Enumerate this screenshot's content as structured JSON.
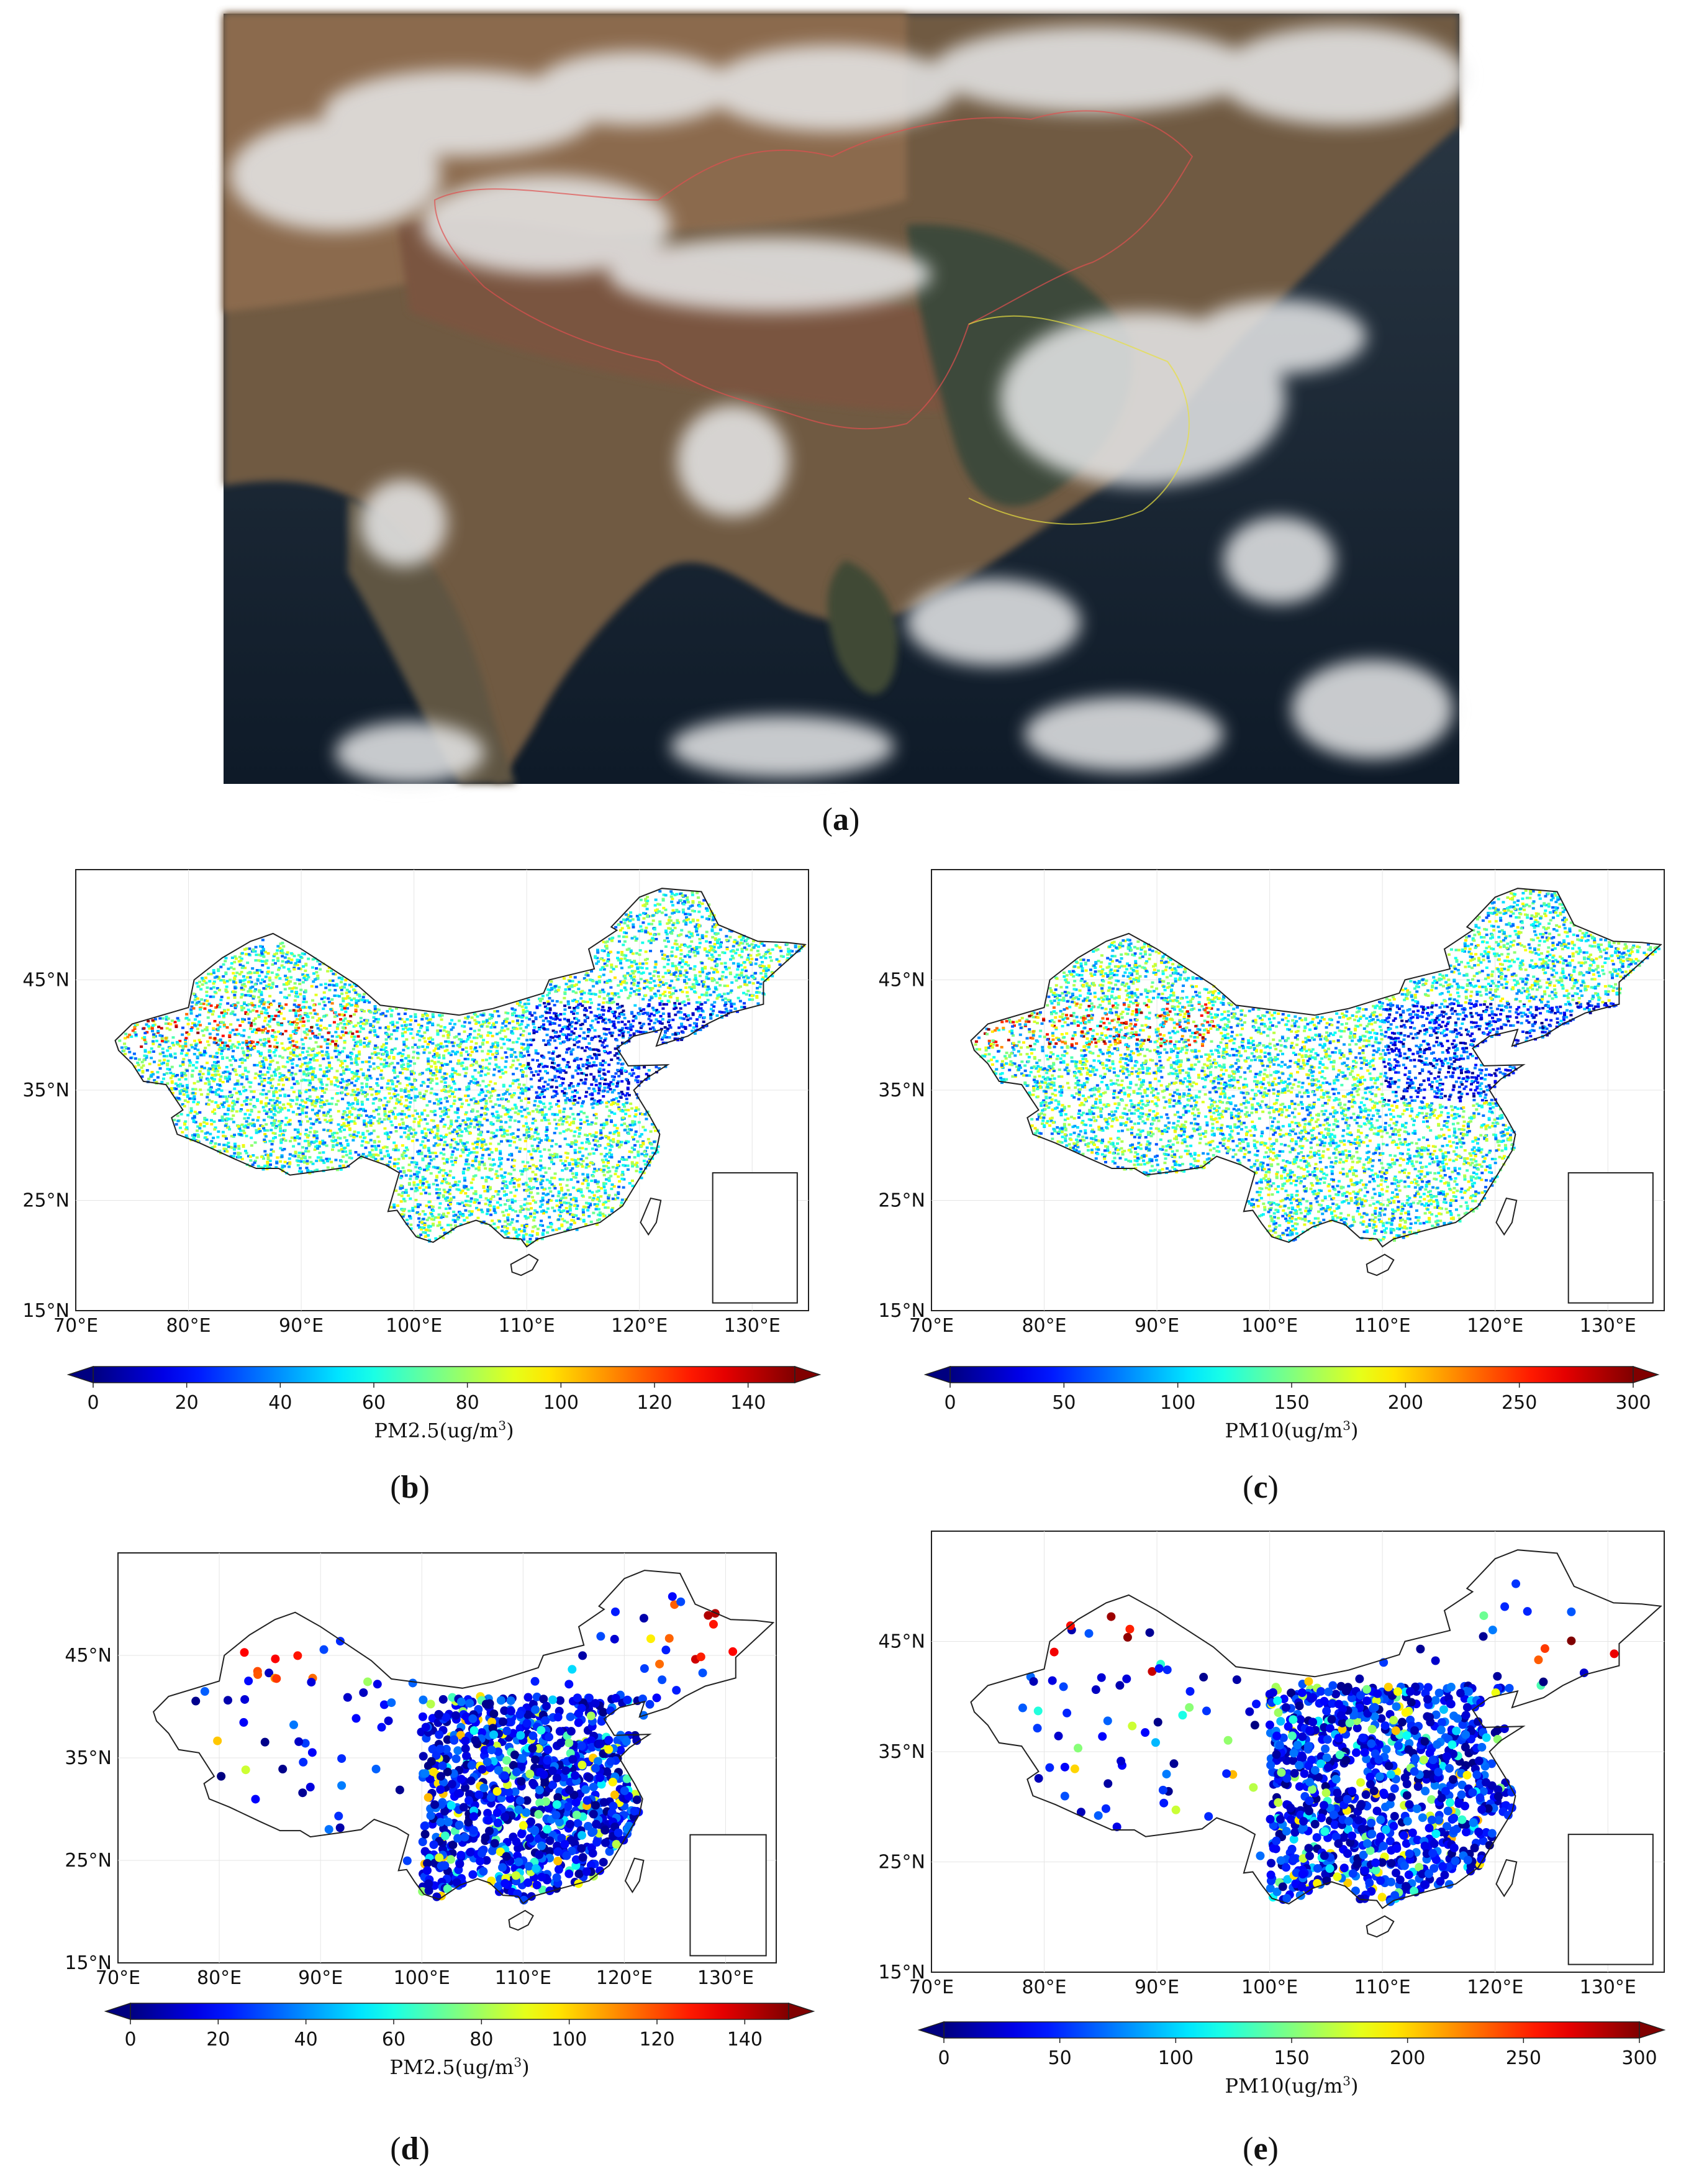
{
  "panels": {
    "a": {
      "caption": "a"
    },
    "b": {
      "caption": "b",
      "colorbar_label": "PM2.5(ug/m",
      "colorbar_label_sup": "3",
      "colorbar_label_end": ")",
      "colorbar_ticks": [
        "0",
        "20",
        "40",
        "60",
        "80",
        "100",
        "120",
        "140"
      ],
      "colorbar_max": 150
    },
    "c": {
      "caption": "c",
      "colorbar_label": "PM10(ug/m",
      "colorbar_label_sup": "3",
      "colorbar_label_end": ")",
      "colorbar_ticks": [
        "0",
        "50",
        "100",
        "150",
        "200",
        "250",
        "300"
      ],
      "colorbar_max": 300
    },
    "d": {
      "caption": "d",
      "colorbar_label": "PM2.5(ug/m",
      "colorbar_label_sup": "3",
      "colorbar_label_end": ")",
      "colorbar_ticks": [
        "0",
        "20",
        "40",
        "60",
        "80",
        "100",
        "120",
        "140"
      ],
      "colorbar_max": 150
    },
    "e": {
      "caption": "e",
      "colorbar_label": "PM10(ug/m",
      "colorbar_label_sup": "3",
      "colorbar_label_end": ")",
      "colorbar_ticks": [
        "0",
        "50",
        "100",
        "150",
        "200",
        "250",
        "300"
      ],
      "colorbar_max": 300
    }
  },
  "map_axes": {
    "lon_labels": [
      "70°E",
      "80°E",
      "90°E",
      "100°E",
      "110°E",
      "120°E",
      "130°E"
    ],
    "lat_labels": [
      "15°N",
      "25°N",
      "35°N",
      "45°N"
    ],
    "lon_range": [
      70,
      135
    ],
    "lat_range": [
      15,
      55
    ]
  },
  "colors": {
    "colormap": "jet",
    "background": "#ffffff",
    "border_line": "#222222"
  }
}
